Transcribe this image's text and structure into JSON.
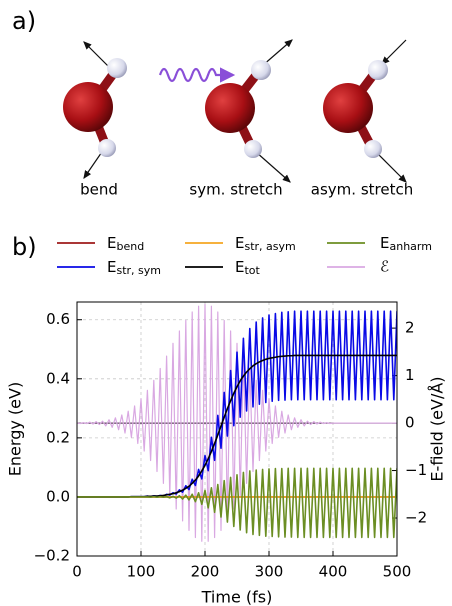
{
  "panel_a": {
    "label": "a)",
    "modes": [
      "bend",
      "sym. stretch",
      "asym. stretch"
    ]
  },
  "chart_data": {
    "type": "line",
    "label": "b)",
    "xlabel": "Time (fs)",
    "ylabel": "Energy (eV)",
    "y2label": "E-field (eV/Å)",
    "xlim": [
      0,
      500
    ],
    "xticks": [
      0,
      100,
      200,
      300,
      400,
      500
    ],
    "ylim": [
      -0.2,
      0.66
    ],
    "yticks": [
      {
        "value": -0.2,
        "label": "−0.2"
      },
      {
        "value": 0,
        "label": "0.0"
      },
      0.2,
      0.4,
      0.6
    ],
    "y2lim": [
      -2.8,
      2.55
    ],
    "y2ticks": [
      {
        "value": -2,
        "label": "−2"
      },
      {
        "value": -1,
        "label": "−1"
      },
      0,
      1,
      2
    ],
    "grid": true,
    "y2_zero_line": true,
    "legend": "top",
    "x": [
      0,
      5,
      10,
      15,
      20,
      25,
      30,
      35,
      40,
      45,
      50,
      55,
      60,
      65,
      70,
      75,
      80,
      85,
      90,
      95,
      100,
      105,
      110,
      115,
      120,
      125,
      130,
      135,
      140,
      145,
      150,
      155,
      160,
      165,
      170,
      175,
      180,
      185,
      190,
      195,
      200,
      205,
      210,
      215,
      220,
      225,
      230,
      235,
      240,
      245,
      250,
      255,
      260,
      265,
      270,
      275,
      280,
      285,
      290,
      295,
      300,
      305,
      310,
      315,
      320,
      325,
      330,
      335,
      340,
      345,
      350,
      355,
      360,
      365,
      370,
      375,
      380,
      385,
      390,
      395,
      400,
      405,
      410,
      415,
      420,
      425,
      430,
      435,
      440,
      445,
      450,
      455,
      460,
      465,
      470,
      475,
      480,
      485,
      490,
      495,
      500
    ],
    "series": [
      {
        "name": "Ebend",
        "color": "#9e1a1a",
        "values": [
          0,
          0,
          0,
          0,
          0,
          0,
          0,
          0,
          0,
          0,
          0,
          0,
          0,
          0,
          0,
          0,
          0,
          0,
          0,
          0,
          0,
          0,
          0,
          0,
          0,
          0,
          0,
          0,
          0,
          0,
          0,
          0,
          0,
          0,
          0,
          0,
          0,
          0,
          0,
          0,
          0,
          0,
          0,
          0,
          0,
          0,
          0,
          0,
          0,
          0,
          0,
          0,
          0,
          0,
          0,
          0,
          0,
          0,
          0,
          0,
          0,
          0,
          0,
          0,
          0,
          0,
          0,
          0,
          0,
          0,
          0,
          0,
          0,
          0,
          0,
          0,
          0,
          0,
          0,
          0,
          0,
          0,
          0,
          0,
          0,
          0,
          0,
          0,
          0,
          0,
          0,
          0,
          0,
          0,
          0,
          0,
          0,
          0,
          0,
          0,
          0
        ]
      },
      {
        "name": "Estr, sym",
        "color": "#0a0ae6",
        "values": [
          0,
          0,
          0,
          0,
          0,
          0,
          0,
          0,
          0,
          0,
          0,
          0,
          0,
          0,
          0,
          0,
          0,
          0.001,
          0.001,
          0.001,
          0.001,
          0.001,
          0.003,
          0.001,
          0.004,
          0.002,
          0.005,
          0.003,
          0.009,
          0.006,
          0.014,
          0.01,
          0.024,
          0.016,
          0.038,
          0.025,
          0.06,
          0.039,
          0.093,
          0.061,
          0.14,
          0.089,
          0.202,
          0.124,
          0.276,
          0.165,
          0.354,
          0.206,
          0.428,
          0.241,
          0.49,
          0.27,
          0.537,
          0.291,
          0.57,
          0.305,
          0.592,
          0.314,
          0.606,
          0.32,
          0.616,
          0.324,
          0.621,
          0.327,
          0.625,
          0.328,
          0.627,
          0.329,
          0.629,
          0.329,
          0.629,
          0.329,
          0.629,
          0.329,
          0.629,
          0.329,
          0.629,
          0.329,
          0.629,
          0.329,
          0.629,
          0.329,
          0.629,
          0.329,
          0.629,
          0.329,
          0.629,
          0.329,
          0.629,
          0.329,
          0.629,
          0.329,
          0.629,
          0.329,
          0.629,
          0.329,
          0.629,
          0.329,
          0.629,
          0.329,
          0.629
        ]
      },
      {
        "name": "Estr, asym",
        "color": "#f5a623",
        "values": [
          0,
          0,
          0,
          0,
          0,
          0,
          0,
          0,
          0,
          0,
          0,
          0,
          0,
          0,
          0,
          0,
          0,
          0,
          0,
          0,
          0,
          0,
          0,
          0,
          0,
          0,
          0,
          0,
          0,
          0,
          0,
          0,
          0,
          0,
          0,
          0,
          0,
          0,
          0,
          0,
          0,
          0,
          0,
          0,
          0,
          0,
          0,
          0,
          0,
          0,
          0,
          0,
          0,
          0,
          0,
          0,
          0,
          0,
          0,
          0,
          0,
          0,
          0,
          0,
          0,
          0,
          0,
          0,
          0,
          0,
          0,
          0,
          0,
          0,
          0,
          0,
          0,
          0,
          0,
          0,
          0,
          0,
          0,
          0,
          0,
          0,
          0,
          0,
          0,
          0,
          0,
          0,
          0,
          0,
          0,
          0,
          0,
          0,
          0,
          0,
          0
        ]
      },
      {
        "name": "Etot",
        "color": "#000000",
        "values": [
          0,
          0,
          0,
          0,
          0,
          0,
          0,
          0,
          0,
          0,
          0,
          0,
          0,
          0,
          0,
          0,
          0,
          0.001,
          0.001,
          0.001,
          0.001,
          0.001,
          0.002,
          0.002,
          0.003,
          0.003,
          0.004,
          0.005,
          0.007,
          0.009,
          0.011,
          0.014,
          0.018,
          0.023,
          0.029,
          0.036,
          0.046,
          0.057,
          0.071,
          0.088,
          0.107,
          0.129,
          0.154,
          0.181,
          0.21,
          0.24,
          0.27,
          0.299,
          0.326,
          0.351,
          0.373,
          0.393,
          0.409,
          0.423,
          0.434,
          0.444,
          0.451,
          0.457,
          0.462,
          0.466,
          0.469,
          0.471,
          0.473,
          0.475,
          0.476,
          0.477,
          0.478,
          0.478,
          0.479,
          0.479,
          0.479,
          0.479,
          0.479,
          0.479,
          0.479,
          0.479,
          0.479,
          0.479,
          0.479,
          0.479,
          0.479,
          0.479,
          0.479,
          0.479,
          0.479,
          0.479,
          0.479,
          0.479,
          0.479,
          0.479,
          0.479,
          0.479,
          0.479,
          0.479,
          0.479,
          0.479,
          0.479,
          0.479,
          0.479,
          0.479,
          0.479
        ]
      },
      {
        "name": "Eanharm",
        "color": "#6b8e23",
        "values": [
          0,
          0,
          0,
          0,
          0,
          0,
          0,
          0,
          0,
          0,
          0,
          0,
          0,
          0,
          0,
          0,
          0,
          0,
          0,
          0,
          0,
          0,
          0,
          -0.001,
          0.001,
          -0.001,
          0.001,
          -0.001,
          0.001,
          -0.003,
          0.002,
          -0.004,
          0.004,
          -0.007,
          0.006,
          -0.01,
          0.009,
          -0.016,
          0.014,
          -0.025,
          0.022,
          -0.037,
          0.031,
          -0.052,
          0.042,
          -0.068,
          0.055,
          -0.085,
          0.066,
          -0.1,
          0.075,
          -0.112,
          0.083,
          -0.121,
          0.088,
          -0.127,
          0.091,
          -0.13,
          0.093,
          -0.133,
          0.095,
          -0.134,
          0.096,
          -0.135,
          0.096,
          -0.136,
          0.097,
          -0.136,
          0.097,
          -0.137,
          0.097,
          -0.137,
          0.097,
          -0.137,
          0.097,
          -0.137,
          0.097,
          -0.137,
          0.097,
          -0.137,
          0.097,
          -0.137,
          0.097,
          -0.137,
          0.097,
          -0.137,
          0.097,
          -0.137,
          0.097,
          -0.137,
          0.097,
          -0.137,
          0.097,
          -0.137,
          0.097,
          -0.137,
          0.097,
          -0.137,
          0.097,
          -0.137,
          0.097
        ]
      },
      {
        "name": "ℰ",
        "color": "#d9a8e2",
        "axis": "y2",
        "values": [
          0,
          -0.01,
          0.01,
          -0.01,
          0.02,
          -0.02,
          0.03,
          -0.03,
          0.04,
          -0.06,
          0.07,
          -0.09,
          0.11,
          -0.14,
          0.17,
          -0.21,
          0.25,
          -0.3,
          0.36,
          -0.43,
          0.51,
          -0.59,
          0.69,
          -0.79,
          0.9,
          -1.02,
          1.15,
          -1.27,
          1.41,
          -1.53,
          1.68,
          -1.81,
          1.94,
          -2.06,
          2.16,
          -2.26,
          2.34,
          -2.41,
          2.46,
          -2.49,
          2.5,
          -2.49,
          2.46,
          -2.41,
          2.34,
          -2.26,
          2.16,
          -2.06,
          1.94,
          -1.81,
          1.68,
          -1.53,
          1.41,
          -1.27,
          1.15,
          -1.02,
          0.9,
          -0.79,
          0.69,
          -0.59,
          0.51,
          -0.43,
          0.36,
          -0.3,
          0.25,
          -0.21,
          0.17,
          -0.14,
          0.11,
          -0.09,
          0.07,
          -0.06,
          0.04,
          -0.03,
          0.03,
          -0.02,
          0.02,
          -0.01,
          0.01,
          -0.01,
          0,
          0,
          0,
          0,
          0,
          0,
          0,
          0,
          0,
          0,
          0,
          0,
          0,
          0,
          0,
          0,
          0,
          0,
          0,
          0,
          0
        ]
      }
    ]
  }
}
